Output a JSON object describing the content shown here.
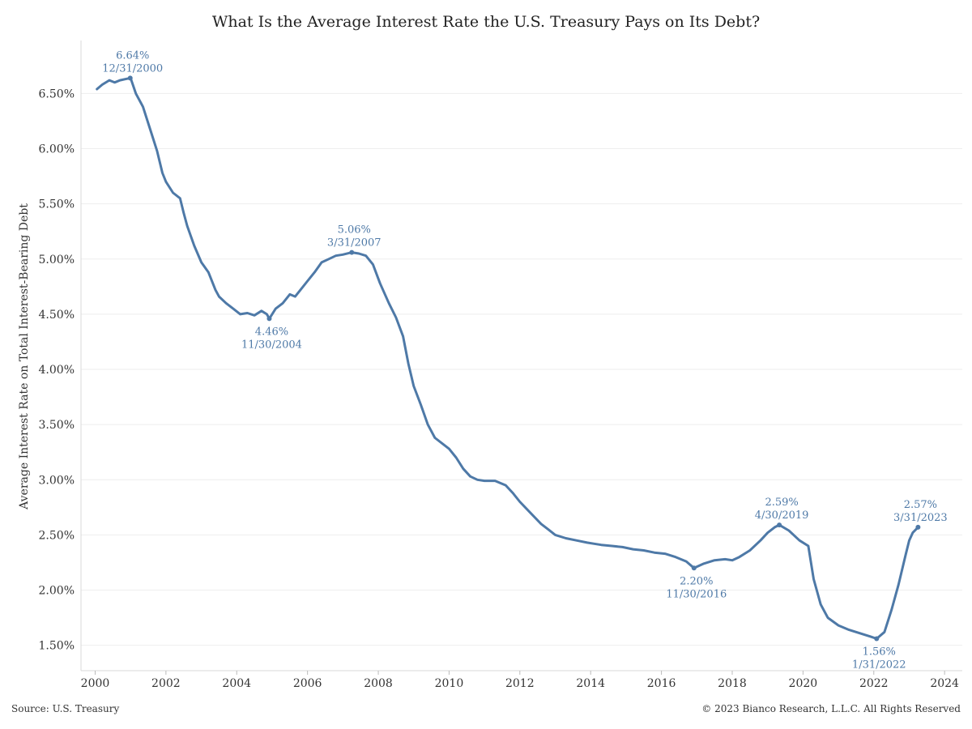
{
  "source_note": "Source: U.S. Treasury",
  "copyright_note": "© 2023 Bianco Research, L.L.C. All Rights Reserved",
  "chart_data": {
    "type": "line",
    "title": "What Is the Average Interest Rate the U.S. Treasury Pays on Its Debt?",
    "xlabel": "",
    "ylabel": "Average Interest Rate on Total Interest-Bearing Debt",
    "xlim": [
      1999.6,
      2024.5
    ],
    "ylim": [
      1.27,
      6.98
    ],
    "x_ticks": [
      2000,
      2002,
      2004,
      2006,
      2008,
      2010,
      2012,
      2014,
      2016,
      2018,
      2020,
      2022,
      2024
    ],
    "x_tick_labels": [
      "2000",
      "2002",
      "2004",
      "2006",
      "2008",
      "2010",
      "2012",
      "2014",
      "2016",
      "2018",
      "2020",
      "2022",
      "2024"
    ],
    "y_ticks": [
      1.5,
      2.0,
      2.5,
      3.0,
      3.5,
      4.0,
      4.5,
      5.0,
      5.5,
      6.0,
      6.5
    ],
    "y_tick_labels": [
      "1.50%",
      "2.00%",
      "2.50%",
      "3.00%",
      "3.50%",
      "4.00%",
      "4.50%",
      "5.00%",
      "5.50%",
      "6.00%",
      "6.50%"
    ],
    "grid": "horizontal",
    "line_color": "#4e79a7",
    "series": [
      {
        "x": [
          2000.05,
          2000.2,
          2000.4,
          2000.55,
          2000.7,
          2000.85,
          2001.0,
          2001.15,
          2001.35,
          2001.55,
          2001.75,
          2001.9,
          2002.0,
          2002.2,
          2002.4,
          2002.5,
          2002.6,
          2002.8,
          2003.0,
          2003.2,
          2003.4,
          2003.5,
          2003.7,
          2003.9,
          2004.1,
          2004.3,
          2004.5,
          2004.7,
          2004.85,
          2004.92,
          2005.1,
          2005.3,
          2005.5,
          2005.65,
          2005.8,
          2006.0,
          2006.2,
          2006.4,
          2006.6,
          2006.8,
          2007.0,
          2007.25,
          2007.45,
          2007.65,
          2007.85,
          2008.05,
          2008.3,
          2008.5,
          2008.7,
          2008.85,
          2009.0,
          2009.2,
          2009.4,
          2009.6,
          2009.8,
          2010.0,
          2010.2,
          2010.4,
          2010.6,
          2010.8,
          2011.0,
          2011.3,
          2011.6,
          2011.8,
          2012.0,
          2012.3,
          2012.6,
          2012.8,
          2013.0,
          2013.3,
          2013.6,
          2013.9,
          2014.1,
          2014.3,
          2014.6,
          2014.9,
          2015.2,
          2015.5,
          2015.8,
          2016.1,
          2016.4,
          2016.7,
          2016.92,
          2017.2,
          2017.5,
          2017.8,
          2018.0,
          2018.2,
          2018.5,
          2018.8,
          2019.0,
          2019.2,
          2019.33,
          2019.6,
          2019.9,
          2020.15,
          2020.3,
          2020.5,
          2020.7,
          2021.0,
          2021.3,
          2021.6,
          2021.9,
          2022.08,
          2022.3,
          2022.5,
          2022.7,
          2022.9,
          2023.0,
          2023.1,
          2023.25
        ],
        "y": [
          6.54,
          6.58,
          6.62,
          6.6,
          6.62,
          6.63,
          6.64,
          6.5,
          6.38,
          6.18,
          5.98,
          5.78,
          5.7,
          5.6,
          5.55,
          5.42,
          5.3,
          5.12,
          4.97,
          4.88,
          4.72,
          4.66,
          4.6,
          4.55,
          4.5,
          4.51,
          4.49,
          4.53,
          4.5,
          4.46,
          4.55,
          4.6,
          4.68,
          4.66,
          4.72,
          4.8,
          4.88,
          4.97,
          5.0,
          5.03,
          5.04,
          5.06,
          5.05,
          5.03,
          4.95,
          4.78,
          4.6,
          4.47,
          4.3,
          4.05,
          3.85,
          3.68,
          3.5,
          3.38,
          3.33,
          3.28,
          3.2,
          3.1,
          3.03,
          3.0,
          2.99,
          2.99,
          2.95,
          2.88,
          2.8,
          2.7,
          2.6,
          2.55,
          2.5,
          2.47,
          2.45,
          2.43,
          2.42,
          2.41,
          2.4,
          2.39,
          2.37,
          2.36,
          2.34,
          2.33,
          2.3,
          2.26,
          2.2,
          2.24,
          2.27,
          2.28,
          2.27,
          2.3,
          2.36,
          2.45,
          2.52,
          2.57,
          2.59,
          2.54,
          2.45,
          2.4,
          2.1,
          1.87,
          1.75,
          1.68,
          1.64,
          1.61,
          1.58,
          1.56,
          1.62,
          1.82,
          2.05,
          2.32,
          2.45,
          2.52,
          2.57
        ]
      }
    ],
    "annotations": [
      {
        "x": 2000.99,
        "y": 6.64,
        "value": "6.64%",
        "date": "12/31/2000",
        "pos": "above"
      },
      {
        "x": 2004.92,
        "y": 4.46,
        "value": "4.46%",
        "date": "11/30/2004",
        "pos": "below"
      },
      {
        "x": 2007.25,
        "y": 5.06,
        "value": "5.06%",
        "date": "3/31/2007",
        "pos": "above"
      },
      {
        "x": 2016.92,
        "y": 2.2,
        "value": "2.20%",
        "date": "11/30/2016",
        "pos": "below"
      },
      {
        "x": 2019.33,
        "y": 2.59,
        "value": "2.59%",
        "date": "4/30/2019",
        "pos": "above"
      },
      {
        "x": 2022.08,
        "y": 1.56,
        "value": "1.56%",
        "date": "1/31/2022",
        "pos": "below"
      },
      {
        "x": 2023.25,
        "y": 2.57,
        "value": "2.57%",
        "date": "3/31/2023",
        "pos": "above"
      }
    ]
  }
}
